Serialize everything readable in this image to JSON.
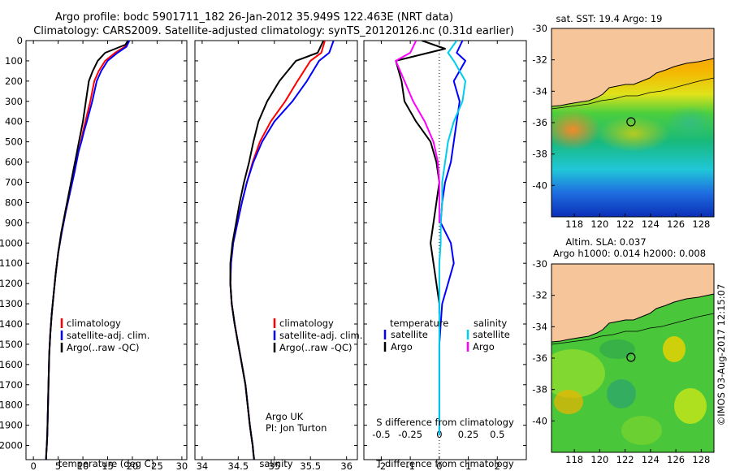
{
  "title_line1": "Argo profile: bodc 5901711_182 26-Jan-2012 35.949S 122.463E (NRT data)",
  "title_line2": "Climatology: CARS2009. Satellite-adjusted climatology: synTS_20120126.nc (0.31d earlier)",
  "colors": {
    "climatology": "#ff0000",
    "satellite": "#0000ff",
    "argo": "#000000",
    "sal_satellite": "#00ccee",
    "sal_argo": "#ff00ff",
    "land": "#f6c59a"
  },
  "chart_data": [
    {
      "id": "temperature",
      "type": "line",
      "xlabel": "temperature (deg C)",
      "ylabel": "",
      "xlim": [
        -1.5,
        31
      ],
      "ylim": [
        2070,
        0
      ],
      "xticks": [
        0,
        5,
        10,
        15,
        20,
        25,
        30
      ],
      "yticks": [
        0,
        100,
        200,
        300,
        400,
        500,
        600,
        700,
        800,
        900,
        1000,
        1100,
        1200,
        1300,
        1400,
        1500,
        1600,
        1700,
        1800,
        1900,
        2000
      ],
      "legend": [
        "climatology",
        "satellite-adj. clim.",
        "Argo(..raw -QC)"
      ],
      "series": [
        {
          "name": "climatology",
          "color": "#ff0000",
          "x": [
            19.2,
            18.5,
            16.5,
            14.5,
            13.2,
            12.3,
            11.5,
            10.5,
            10,
            9.6,
            9.1,
            8.3,
            7.4,
            6.5,
            5.7,
            5.0,
            4.5,
            4.1,
            3.7,
            3.4,
            3.2,
            3.1,
            3.0,
            2.9,
            2.8,
            2.7,
            2.6,
            2.55
          ],
          "y": [
            0,
            30,
            60,
            100,
            150,
            200,
            300,
            400,
            450,
            500,
            550,
            650,
            750,
            850,
            950,
            1050,
            1150,
            1250,
            1350,
            1450,
            1550,
            1650,
            1750,
            1850,
            1950,
            2000,
            2040,
            2070
          ]
        },
        {
          "name": "satellite-adj. clim.",
          "color": "#0000ff",
          "x": [
            19.4,
            18.8,
            17,
            15,
            13.7,
            12.8,
            11.9,
            10.8,
            10.2,
            9.7,
            9.1,
            8.3,
            7.4,
            6.5,
            5.7,
            5.0,
            4.5,
            4.1,
            3.7,
            3.4,
            3.2,
            3.1,
            3.0,
            2.9,
            2.8,
            2.7,
            2.6,
            2.55
          ],
          "y": [
            0,
            30,
            60,
            100,
            150,
            200,
            300,
            400,
            450,
            500,
            550,
            650,
            750,
            850,
            950,
            1050,
            1150,
            1250,
            1350,
            1450,
            1550,
            1650,
            1750,
            1850,
            1950,
            2000,
            2040,
            2070
          ]
        },
        {
          "name": "Argo(..raw -QC)",
          "color": "#000000",
          "x": [
            19.1,
            18.6,
            14.5,
            13,
            12,
            11.2,
            10.6,
            10,
            9.6,
            9.2,
            8.8,
            8.0,
            7.2,
            6.4,
            5.6,
            5.0,
            4.5,
            4.1,
            3.7,
            3.4,
            3.2,
            3.1,
            3.0,
            2.9,
            2.8,
            2.7,
            2.6,
            2.55
          ],
          "y": [
            0,
            20,
            60,
            100,
            150,
            200,
            300,
            400,
            450,
            500,
            550,
            650,
            750,
            850,
            950,
            1050,
            1150,
            1250,
            1350,
            1450,
            1550,
            1650,
            1750,
            1850,
            1950,
            2000,
            2040,
            2070
          ]
        }
      ]
    },
    {
      "id": "salinity",
      "type": "line",
      "xlabel": "salinity",
      "ylabel": "",
      "xlim": [
        33.9,
        36.15
      ],
      "ylim": [
        2070,
        0
      ],
      "xticks": [
        34,
        34.5,
        35,
        35.5,
        36
      ],
      "legend": [
        "climatology",
        "satellite-adj. clim.",
        "Argo(..raw -QC)"
      ],
      "annotation": [
        "Argo UK",
        "PI: Jon Turton"
      ],
      "series": [
        {
          "name": "climatology",
          "color": "#ff0000",
          "x": [
            35.7,
            35.65,
            35.5,
            35.32,
            35.15,
            34.95,
            34.8,
            34.7,
            34.62,
            34.55,
            34.49,
            34.43,
            34.4,
            34.39,
            34.41,
            34.45,
            34.5,
            34.55,
            34.6,
            34.63,
            34.66,
            34.68,
            34.7,
            34.71,
            34.72
          ],
          "y": [
            0,
            60,
            100,
            200,
            300,
            400,
            500,
            600,
            700,
            800,
            900,
            1000,
            1100,
            1200,
            1300,
            1400,
            1500,
            1600,
            1700,
            1800,
            1900,
            1950,
            2000,
            2040,
            2070
          ]
        },
        {
          "name": "satellite-adj. clim.",
          "color": "#0000ff",
          "x": [
            35.82,
            35.76,
            35.62,
            35.45,
            35.25,
            35.0,
            34.83,
            34.71,
            34.62,
            34.55,
            34.49,
            34.43,
            34.4,
            34.39,
            34.41,
            34.45,
            34.5,
            34.55,
            34.6,
            34.63,
            34.66,
            34.68,
            34.7,
            34.71,
            34.72
          ],
          "y": [
            0,
            60,
            100,
            200,
            300,
            400,
            500,
            600,
            700,
            800,
            900,
            1000,
            1100,
            1200,
            1300,
            1400,
            1500,
            1600,
            1700,
            1800,
            1900,
            1950,
            2000,
            2040,
            2070
          ]
        },
        {
          "name": "Argo(..raw -QC)",
          "color": "#000000",
          "x": [
            35.68,
            35.6,
            35.3,
            35.07,
            34.9,
            34.78,
            34.71,
            34.65,
            34.58,
            34.52,
            34.47,
            34.42,
            34.39,
            34.39,
            34.41,
            34.45,
            34.5,
            34.55,
            34.6,
            34.63,
            34.66,
            34.68,
            34.7,
            34.71,
            34.72
          ],
          "y": [
            0,
            60,
            100,
            200,
            300,
            400,
            500,
            600,
            700,
            800,
            900,
            1000,
            1100,
            1200,
            1300,
            1400,
            1500,
            1600,
            1700,
            1800,
            1900,
            1950,
            2000,
            2040,
            2070
          ]
        }
      ]
    },
    {
      "id": "difference",
      "type": "line",
      "xlabel": "T difference from climatology",
      "xlabel2": "S difference from climatology",
      "xlim": [
        -2.6,
        3
      ],
      "ylim": [
        2070,
        0
      ],
      "xticks": [
        -2,
        -1,
        0,
        1,
        2
      ],
      "xticks_s": [
        "-0.5",
        "-0.25",
        "0",
        "0.25",
        "0.5"
      ],
      "xticks_s_values": [
        -2,
        -1,
        0,
        1,
        2
      ],
      "legend_left": {
        "title": "temperature",
        "items": [
          "satellite",
          "Argo"
        ]
      },
      "legend_right": {
        "title": "salinity",
        "items": [
          "satellite",
          "Argo"
        ]
      },
      "series": [
        {
          "name": "temperature satellite",
          "color": "#0000ff",
          "x": [
            0.8,
            0.6,
            0.9,
            0.5,
            0.7,
            0.6,
            0.5,
            0.4,
            0.2,
            0.1,
            0.05,
            0.4,
            0.5,
            0.3,
            0.1,
            0.05,
            0,
            0,
            0,
            0,
            0
          ],
          "y": [
            0,
            60,
            100,
            200,
            300,
            400,
            500,
            600,
            700,
            800,
            900,
            1000,
            1100,
            1200,
            1300,
            1400,
            1500,
            1600,
            1700,
            1800,
            1950
          ]
        },
        {
          "name": "temperature Argo",
          "color": "#000000",
          "x": [
            -0.6,
            0.2,
            -1.5,
            -1.3,
            -1.2,
            -0.8,
            -0.3,
            -0.1,
            0,
            -0.1,
            -0.2,
            -0.3,
            -0.2,
            -0.1,
            0,
            0
          ],
          "y": [
            0,
            40,
            100,
            200,
            300,
            400,
            500,
            600,
            700,
            800,
            900,
            1000,
            1100,
            1200,
            1300,
            1350
          ]
        },
        {
          "name": "salinity satellite",
          "color": "#00ccee",
          "x": [
            0.6,
            0.3,
            0.5,
            0.9,
            0.8,
            0.5,
            0.3,
            0.2,
            0.1,
            0.1,
            0.05,
            0.05,
            0,
            0,
            0,
            0,
            0
          ],
          "y": [
            0,
            60,
            100,
            200,
            300,
            400,
            500,
            600,
            700,
            800,
            900,
            1000,
            1100,
            1300,
            1500,
            1700,
            1950
          ]
        },
        {
          "name": "salinity Argo",
          "color": "#ff00ff",
          "x": [
            -0.8,
            -1.0,
            -1.5,
            -1.2,
            -0.9,
            -0.5,
            -0.2,
            -0.05,
            0,
            0,
            0
          ],
          "y": [
            0,
            60,
            100,
            200,
            300,
            400,
            500,
            600,
            700,
            800,
            900
          ]
        }
      ]
    }
  ],
  "maps": [
    {
      "id": "sst",
      "title": "sat. SST: 19.4  Argo: 19",
      "xticks": [
        118,
        120,
        122,
        124,
        126,
        128
      ],
      "yticks": [
        -30,
        -32,
        -34,
        -36,
        -38,
        -40
      ],
      "xlim": [
        116.2,
        129
      ],
      "ylim": [
        -42,
        -30
      ],
      "marker": {
        "lon": 122.463,
        "lat": -35.949
      }
    },
    {
      "id": "sla",
      "title_line1": "Altim. SLA: 0.037",
      "title_line2": "Argo h1000: 0.014  h2000: 0.008",
      "xticks": [
        118,
        120,
        122,
        124,
        126,
        128
      ],
      "yticks": [
        -30,
        -32,
        -34,
        -36,
        -38,
        -40
      ],
      "xlim": [
        116.2,
        129
      ],
      "ylim": [
        -42,
        -30
      ],
      "marker": {
        "lon": 122.463,
        "lat": -35.949
      }
    }
  ],
  "watermark": "©IMOS 03-Aug-2017 12:15:07"
}
